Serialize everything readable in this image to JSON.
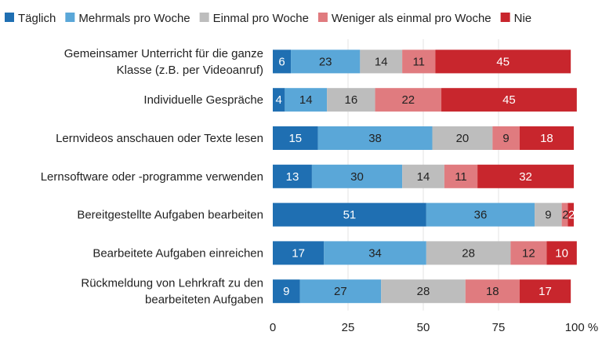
{
  "chart_data": {
    "type": "bar",
    "orientation": "horizontal",
    "stacked": true,
    "categories": [
      [
        "Gemeinsamer Unterricht für die ganze",
        "Klasse (z.B. per Videoanruf)"
      ],
      [
        "Individuelle Gespräche"
      ],
      [
        "Lernvideos anschauen oder Texte lesen"
      ],
      [
        "Lernsoftware oder -programme verwenden"
      ],
      [
        "Bereitgestellte Aufgaben bearbeiten"
      ],
      [
        "Bearbeitete Aufgaben einreichen"
      ],
      [
        "Rückmeldung von Lehrkraft zu den",
        "bearbeiteten Aufgaben"
      ]
    ],
    "series": [
      {
        "name": "Täglich",
        "color": "#1f6fb2",
        "text_color": "#ffffff",
        "values": [
          6,
          4,
          15,
          13,
          51,
          17,
          9
        ]
      },
      {
        "name": "Mehrmals pro Woche",
        "color": "#5aa7d8",
        "text_color": "#222222",
        "values": [
          23,
          14,
          38,
          30,
          36,
          34,
          27
        ]
      },
      {
        "name": "Einmal pro Woche",
        "color": "#bdbdbd",
        "text_color": "#222222",
        "values": [
          14,
          16,
          20,
          14,
          9,
          28,
          28
        ]
      },
      {
        "name": "Weniger als einmal pro Woche",
        "color": "#e07b7f",
        "text_color": "#222222",
        "values": [
          11,
          22,
          9,
          11,
          2,
          12,
          18
        ]
      },
      {
        "name": "Nie",
        "color": "#c8262d",
        "text_color": "#ffffff",
        "values": [
          45,
          45,
          18,
          32,
          2,
          10,
          17
        ]
      }
    ],
    "xlim": [
      0,
      100
    ],
    "xticks": [
      "0",
      "25",
      "50",
      "75",
      "100 %"
    ],
    "legend_position": "top"
  }
}
